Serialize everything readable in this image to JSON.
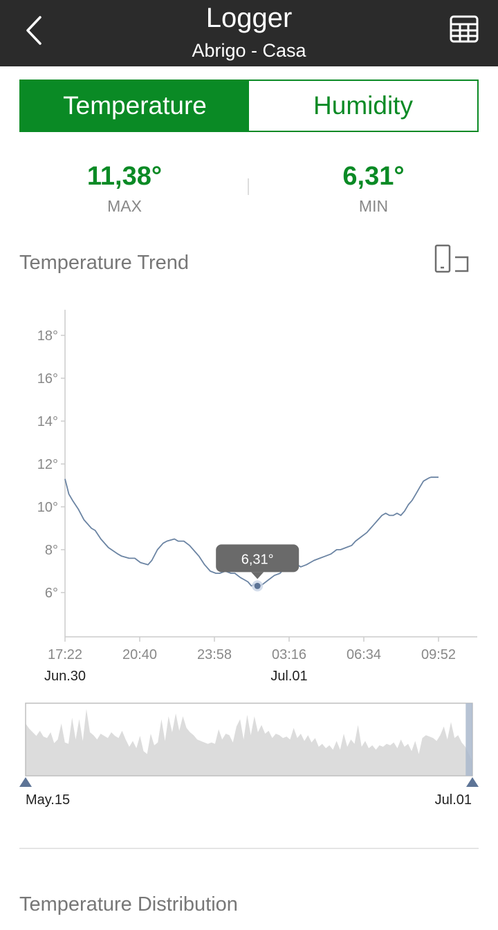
{
  "header": {
    "title": "Logger",
    "subtitle": "Abrigo - Casa",
    "back_icon": "chevron-left-icon",
    "table_icon": "table-grid-icon"
  },
  "tabs": [
    {
      "label": "Temperature",
      "active": true
    },
    {
      "label": "Humidity",
      "active": false
    }
  ],
  "stats": {
    "max": {
      "value": "11,38°",
      "label": "MAX"
    },
    "min": {
      "value": "6,31°",
      "label": "MIN"
    }
  },
  "trend": {
    "title": "Temperature Trend",
    "rotate_icon": "rotate-screen-icon"
  },
  "chart_data": {
    "type": "line",
    "yticks": [
      "6°",
      "8°",
      "10°",
      "12°",
      "14°",
      "16°",
      "18°"
    ],
    "ytick_values": [
      6,
      8,
      10,
      12,
      14,
      16,
      18
    ],
    "ylim": [
      4.8,
      19
    ],
    "xticks": [
      "17:22",
      "20:40",
      "23:58",
      "03:16",
      "06:34",
      "09:52"
    ],
    "xtick_minutes": [
      0,
      198,
      396,
      594,
      792,
      990
    ],
    "date_labels": [
      {
        "text": "Jun.30",
        "at_minute": 0
      },
      {
        "text": "Jul.01",
        "at_minute": 594
      }
    ],
    "xlim_minutes": [
      0,
      1100
    ],
    "series": [
      {
        "color": "#6b84a3",
        "x": [
          0,
          10,
          20,
          35,
          50,
          70,
          80,
          95,
          115,
          140,
          150,
          170,
          185,
          200,
          220,
          230,
          245,
          260,
          270,
          290,
          300,
          315,
          330,
          345,
          355,
          370,
          385,
          400,
          410,
          425,
          440,
          450,
          465,
          475,
          485,
          494,
          505,
          515,
          525,
          540,
          555,
          570,
          580,
          590,
          600,
          615,
          625,
          640,
          650,
          660,
          675,
          690,
          705,
          720,
          730,
          745,
          760,
          770,
          785,
          800,
          810,
          820,
          830,
          840,
          850,
          860,
          870,
          880,
          890,
          900,
          910,
          920,
          930,
          940,
          950,
          960,
          965,
          970,
          980,
          990
        ],
        "y": [
          11.3,
          10.6,
          10.3,
          9.9,
          9.4,
          9.0,
          8.9,
          8.5,
          8.1,
          7.8,
          7.7,
          7.6,
          7.6,
          7.4,
          7.3,
          7.5,
          8.0,
          8.3,
          8.4,
          8.5,
          8.4,
          8.4,
          8.2,
          7.9,
          7.7,
          7.3,
          7.0,
          6.9,
          6.9,
          7.0,
          6.9,
          6.9,
          6.7,
          6.6,
          6.5,
          6.31,
          6.4,
          6.3,
          6.4,
          6.6,
          6.8,
          6.9,
          7.1,
          7.2,
          7.1,
          7.3,
          7.2,
          7.3,
          7.4,
          7.5,
          7.6,
          7.7,
          7.8,
          8.0,
          8.0,
          8.1,
          8.2,
          8.4,
          8.6,
          8.8,
          9.0,
          9.2,
          9.4,
          9.6,
          9.7,
          9.6,
          9.6,
          9.7,
          9.6,
          9.8,
          10.1,
          10.3,
          10.6,
          10.9,
          11.2,
          11.3,
          11.35,
          11.38,
          11.38,
          11.38
        ]
      }
    ],
    "tooltip": {
      "label": "6,31°",
      "x_minute": 510,
      "y_value": 6.31
    }
  },
  "overview": {
    "start_label": "May.15",
    "end_label": "Jul.01",
    "values": [
      0.72,
      0.65,
      0.6,
      0.55,
      0.62,
      0.54,
      0.52,
      0.6,
      0.45,
      0.5,
      0.72,
      0.46,
      0.44,
      0.8,
      0.5,
      0.78,
      0.48,
      0.92,
      0.6,
      0.56,
      0.5,
      0.58,
      0.55,
      0.52,
      0.6,
      0.55,
      0.52,
      0.62,
      0.5,
      0.4,
      0.48,
      0.38,
      0.55,
      0.34,
      0.3,
      0.58,
      0.42,
      0.46,
      0.78,
      0.48,
      0.82,
      0.6,
      0.86,
      0.62,
      0.82,
      0.66,
      0.6,
      0.56,
      0.5,
      0.48,
      0.46,
      0.44,
      0.46,
      0.44,
      0.64,
      0.5,
      0.58,
      0.56,
      0.46,
      0.68,
      0.78,
      0.5,
      0.84,
      0.56,
      0.82,
      0.6,
      0.7,
      0.58,
      0.62,
      0.52,
      0.58,
      0.56,
      0.52,
      0.54,
      0.5,
      0.66,
      0.52,
      0.58,
      0.48,
      0.56,
      0.46,
      0.52,
      0.4,
      0.44,
      0.38,
      0.42,
      0.36,
      0.48,
      0.36,
      0.58,
      0.4,
      0.5,
      0.44,
      0.7,
      0.4,
      0.48,
      0.38,
      0.42,
      0.36,
      0.42,
      0.4,
      0.44,
      0.42,
      0.46,
      0.38,
      0.5,
      0.4,
      0.44,
      0.34,
      0.48,
      0.3,
      0.52,
      0.56,
      0.54,
      0.52,
      0.48,
      0.56,
      0.68,
      0.5,
      0.74,
      0.52,
      0.56,
      0.46,
      0.4,
      0.3,
      0.2
    ],
    "selection_start_fraction": 0.985,
    "selection_end_fraction": 1.0
  },
  "distribution": {
    "title": "Temperature Distribution"
  }
}
